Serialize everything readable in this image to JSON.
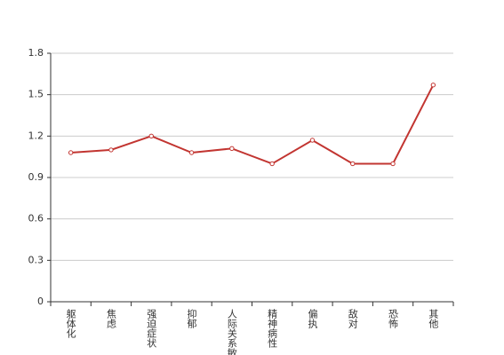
{
  "chart_data": {
    "type": "line",
    "categories": [
      "躯体化",
      "焦虑",
      "强迫症状",
      "抑郁",
      "人际关系敏感",
      "精神病性",
      "偏执",
      "敌对",
      "恐怖",
      "其他"
    ],
    "series": [
      {
        "name": null,
        "color": "#c23531",
        "values": [
          1.08,
          1.1,
          1.2,
          1.08,
          1.11,
          1.0,
          1.17,
          1.0,
          1.0,
          1.57
        ]
      }
    ],
    "ylim": [
      0,
      1.8
    ],
    "yticks": [
      0,
      0.3,
      0.6,
      0.9,
      1.2,
      1.5,
      1.8
    ],
    "grid": true
  }
}
